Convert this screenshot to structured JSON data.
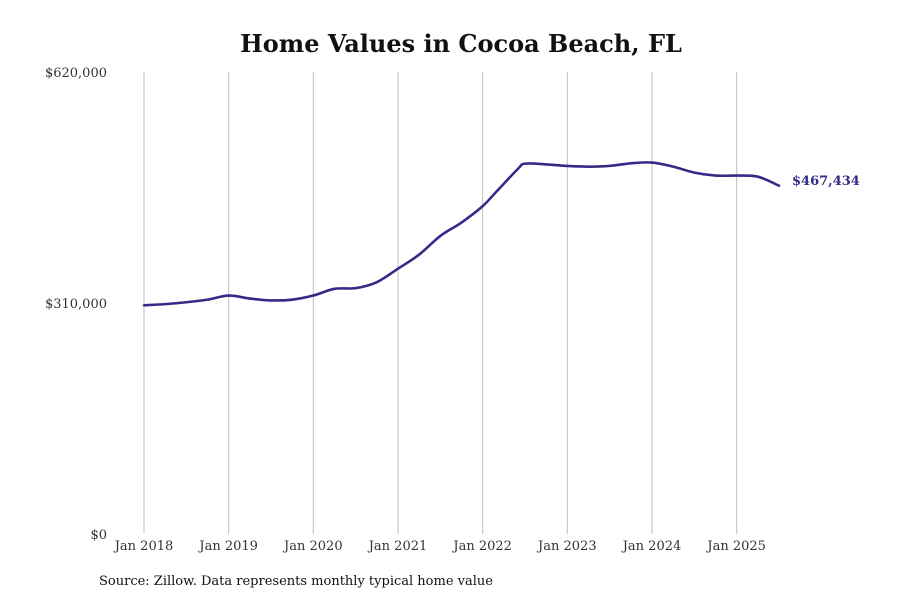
{
  "chart_data": {
    "type": "line",
    "title": "Home Values in Cocoa Beach, FL",
    "xlabel": "",
    "ylabel": "",
    "ylim": [
      0,
      620000
    ],
    "yticks": [
      0,
      310000,
      620000
    ],
    "ytick_labels": [
      "$0",
      "$310,000",
      "$620,000"
    ],
    "xlim": [
      "2018-01",
      "2025-07"
    ],
    "xticks": [
      "2018-01",
      "2019-01",
      "2020-01",
      "2021-01",
      "2022-01",
      "2023-01",
      "2024-01",
      "2025-01"
    ],
    "xtick_labels": [
      "Jan 2018",
      "Jan 2019",
      "Jan 2020",
      "Jan 2021",
      "Jan 2022",
      "Jan 2023",
      "Jan 2024",
      "Jan 2025"
    ],
    "grid": "vertical",
    "legend": "none",
    "end_label": "$467,434",
    "series": [
      {
        "color": "#332b87",
        "x": [
          "2018-01",
          "2018-04",
          "2018-07",
          "2018-10",
          "2019-01",
          "2019-04",
          "2019-07",
          "2019-10",
          "2020-01",
          "2020-04",
          "2020-07",
          "2020-10",
          "2021-01",
          "2021-04",
          "2021-07",
          "2021-10",
          "2022-01",
          "2022-03",
          "2022-06",
          "2022-07",
          "2022-10",
          "2023-01",
          "2023-04",
          "2023-07",
          "2023-10",
          "2024-01",
          "2024-04",
          "2024-07",
          "2024-10",
          "2025-01",
          "2025-04",
          "2025-07"
        ],
        "values": [
          307000,
          308500,
          311000,
          314500,
          320000,
          316000,
          313500,
          314500,
          320000,
          329000,
          330000,
          338000,
          356000,
          375000,
          400000,
          418000,
          440000,
          460000,
          490000,
          497000,
          496000,
          494000,
          493000,
          494000,
          497500,
          498500,
          493000,
          485000,
          481000,
          481000,
          479500,
          467434
        ]
      }
    ]
  },
  "footer": {
    "source": "Source: Zillow. Data represents monthly typical home value"
  }
}
